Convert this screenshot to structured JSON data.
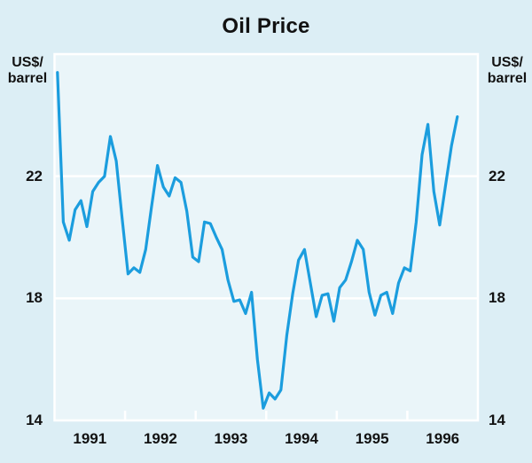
{
  "chart_data": {
    "type": "line",
    "title": "Oil Price",
    "y_axis_label_left": [
      "US$/",
      "barrel"
    ],
    "y_axis_label_right": [
      "US$/",
      "barrel"
    ],
    "y_ticks": [
      22,
      18,
      14
    ],
    "ylim": [
      14,
      26
    ],
    "grid": "horizontal white gridlines at y ticks, white plot border, year ticks on bottom axis",
    "legend_position": "none",
    "x_tick_labels": [
      "1991",
      "1992",
      "1993",
      "1994",
      "1995",
      "1996"
    ],
    "points_per_year": 12,
    "series": [
      {
        "name": "Oil price (US$/barrel), monthly",
        "values": [
          25.4,
          20.5,
          19.9,
          20.9,
          21.2,
          20.35,
          21.5,
          21.8,
          22.0,
          23.3,
          22.5,
          20.6,
          18.8,
          19.0,
          18.85,
          19.6,
          21.0,
          22.35,
          21.65,
          21.35,
          21.95,
          21.8,
          20.85,
          19.35,
          19.2,
          20.5,
          20.45,
          20.0,
          19.6,
          18.6,
          17.9,
          17.95,
          17.5,
          18.2,
          16.0,
          14.4,
          14.9,
          14.7,
          15.0,
          16.8,
          18.15,
          19.25,
          19.6,
          18.5,
          17.4,
          18.1,
          18.15,
          17.25,
          18.35,
          18.6,
          19.2,
          19.9,
          19.6,
          18.2,
          17.45,
          18.1,
          18.2,
          17.5,
          18.5,
          19.0,
          18.9,
          20.5,
          22.7,
          23.7,
          21.5,
          20.4,
          21.7,
          23.0,
          23.95
        ]
      }
    ],
    "colors": {
      "line": "#1b9dde",
      "plot_background": "#eaf5f9",
      "outer_background": "#dceef5",
      "grid": "#ffffff",
      "text": "#121212"
    }
  }
}
